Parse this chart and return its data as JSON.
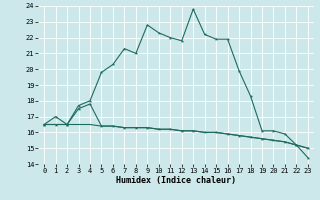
{
  "title": "",
  "xlabel": "Humidex (Indice chaleur)",
  "background_color": "#cce8ea",
  "grid_color": "#ffffff",
  "line_color": "#1e6b5e",
  "xlim": [
    -0.5,
    23.5
  ],
  "ylim": [
    14,
    24
  ],
  "xticks": [
    0,
    1,
    2,
    3,
    4,
    5,
    6,
    7,
    8,
    9,
    10,
    11,
    12,
    13,
    14,
    15,
    16,
    17,
    18,
    19,
    20,
    21,
    22,
    23
  ],
  "yticks": [
    14,
    15,
    16,
    17,
    18,
    19,
    20,
    21,
    22,
    23,
    24
  ],
  "line1_x": [
    0,
    1,
    2,
    3,
    4,
    5,
    6,
    7,
    8,
    9,
    10,
    11,
    12,
    13,
    14,
    15,
    16,
    17,
    18,
    19,
    20,
    21,
    22,
    23
  ],
  "line1_y": [
    16.5,
    17.0,
    16.5,
    17.7,
    18.0,
    19.8,
    20.3,
    21.3,
    21.0,
    22.8,
    22.3,
    22.0,
    21.8,
    23.8,
    22.2,
    21.9,
    21.9,
    19.9,
    18.3,
    16.1,
    16.1,
    15.9,
    15.2,
    15.0
  ],
  "line2_x": [
    0,
    1,
    2,
    3,
    4,
    5,
    6,
    7,
    8,
    9,
    10,
    11,
    12,
    13,
    14,
    15,
    16,
    17,
    18,
    19,
    20,
    21,
    22,
    23
  ],
  "line2_y": [
    16.5,
    16.5,
    16.5,
    17.5,
    17.8,
    16.4,
    16.4,
    16.3,
    16.3,
    16.3,
    16.2,
    16.2,
    16.1,
    16.1,
    16.0,
    16.0,
    15.9,
    15.8,
    15.7,
    15.6,
    15.5,
    15.4,
    15.2,
    14.4
  ],
  "line3_x": [
    0,
    1,
    2,
    3,
    4,
    5,
    6,
    7,
    8,
    9,
    10,
    11,
    12,
    13,
    14,
    15,
    16,
    17,
    18,
    19,
    20,
    21,
    22,
    23
  ],
  "line3_y": [
    16.5,
    16.5,
    16.5,
    16.5,
    16.5,
    16.4,
    16.4,
    16.3,
    16.3,
    16.3,
    16.2,
    16.2,
    16.1,
    16.1,
    16.0,
    16.0,
    15.9,
    15.8,
    15.7,
    15.6,
    15.5,
    15.4,
    15.2,
    15.0
  ],
  "xlabel_fontsize": 6.0,
  "tick_fontsize": 5.0
}
